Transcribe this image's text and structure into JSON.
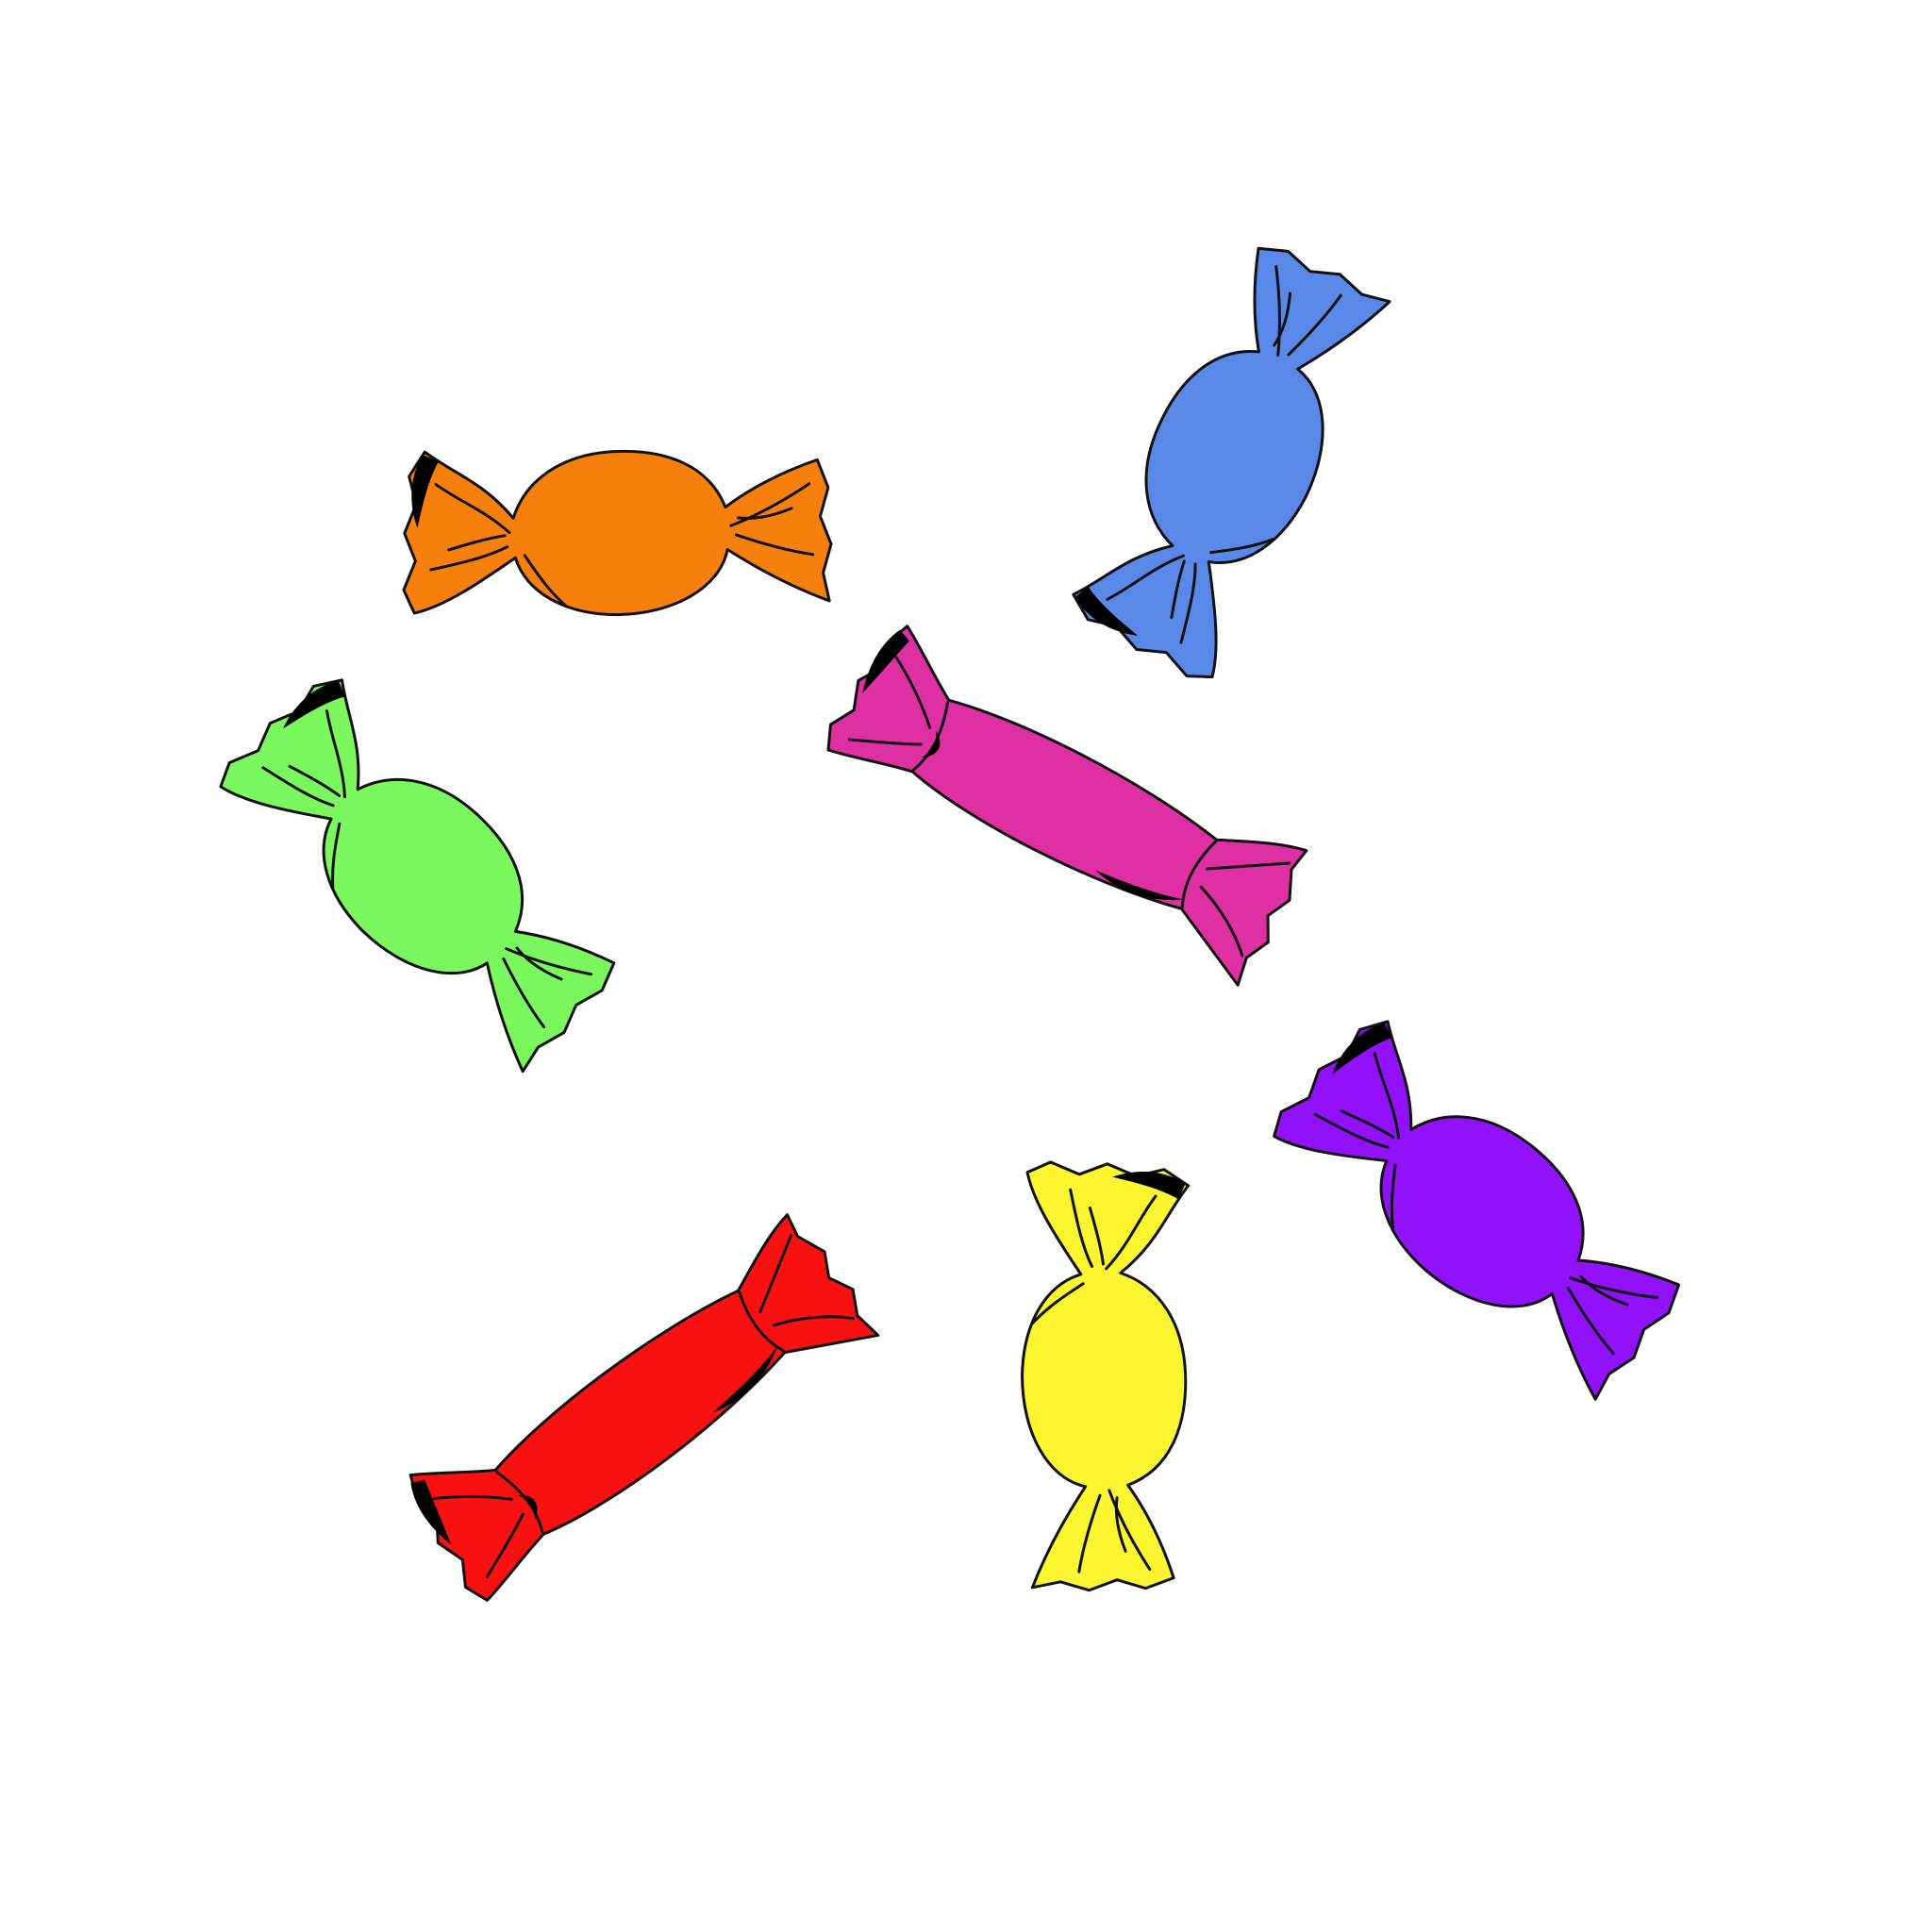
{
  "colors": {
    "background": "#ffffff",
    "outline": "#111111",
    "shadow": "#000000"
  },
  "candies": [
    {
      "name": "orange",
      "color": "#f6800b",
      "style": "round"
    },
    {
      "name": "blue",
      "color": "#5988e8",
      "style": "round"
    },
    {
      "name": "green",
      "color": "#7bf85d",
      "style": "round"
    },
    {
      "name": "pink",
      "color": "#de30a3",
      "style": "long"
    },
    {
      "name": "purple",
      "color": "#9111fb",
      "style": "round"
    },
    {
      "name": "yellow",
      "color": "#fbf630",
      "style": "round"
    },
    {
      "name": "red",
      "color": "#f91111",
      "style": "long"
    }
  ]
}
